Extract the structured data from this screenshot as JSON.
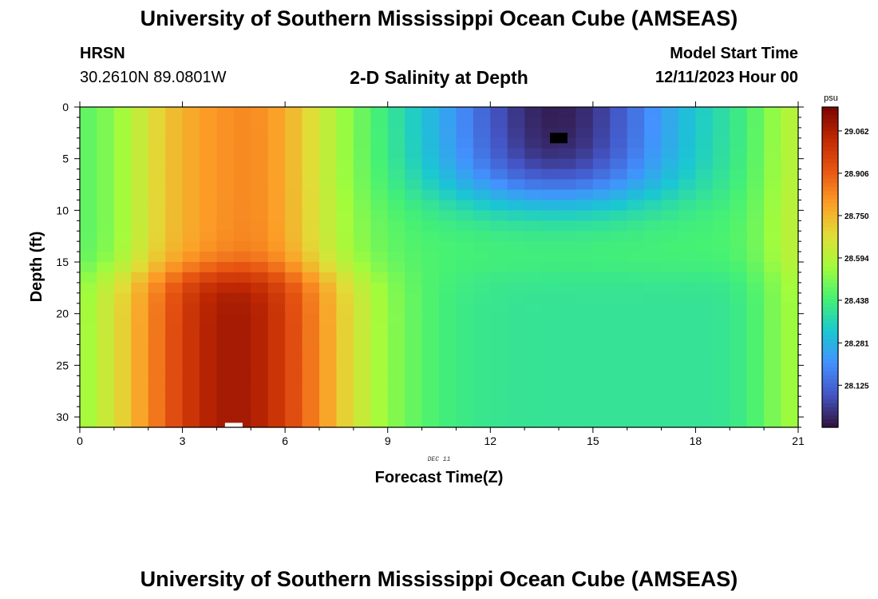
{
  "header": {
    "title": "University of Southern Mississippi Ocean Cube (AMSEAS)",
    "station": "HRSN",
    "coordinates": "30.2610N  89.0801W",
    "plot_title": "2-D Salinity at Depth",
    "model_start_label": "Model Start Time",
    "model_start_value": "12/11/2023 Hour 00"
  },
  "footer": {
    "title": "University of Southern Mississippi Ocean Cube (AMSEAS)"
  },
  "chart_data": {
    "type": "heatmap",
    "title": "2-D Salinity at Depth",
    "xlabel": "Forecast Time(Z)",
    "ylabel": "Depth (ft)",
    "x_sublabel": "DEC 11",
    "xlim": [
      0,
      21
    ],
    "ylim": [
      0,
      31
    ],
    "x_ticks": [
      0,
      3,
      6,
      9,
      12,
      15,
      18,
      21
    ],
    "y_ticks": [
      0,
      5,
      10,
      15,
      20,
      25,
      30
    ],
    "colorbar": {
      "unit": "psu",
      "ticks": [
        29.062,
        28.906,
        28.75,
        28.594,
        28.438,
        28.281,
        28.125
      ],
      "tick_labels": [
        "29.062",
        "28.906",
        "28.750",
        "28.594",
        "28.438",
        "28.281",
        "28.125"
      ],
      "range": [
        27.97,
        29.15
      ],
      "colors": [
        "#30123b",
        "#4454c4",
        "#4391fe",
        "#1ac7d2",
        "#45f174",
        "#a2fc3c",
        "#e1dd37",
        "#fc9d27",
        "#e85613",
        "#c02903",
        "#7a0403"
      ]
    },
    "time_step_hours": 0.5,
    "depth_step_ft": 1,
    "salinity_field_description": "Upper left warm-salty layer (~28.8 psu) over deep high-salinity core (~29.1 psu near 4-5 h, 25-31 ft); low-salinity core (~28.0 psu) at 13-15 h, 0-8 ft; mid-salinity (~28.45 psu) at depth after 12 h.",
    "markers": [
      {
        "type": "min",
        "x": 14.0,
        "y": 3.0,
        "color": "#000000"
      },
      {
        "type": "max",
        "x": 4.5,
        "y": 30.8,
        "color": "#ffffff"
      }
    ]
  }
}
